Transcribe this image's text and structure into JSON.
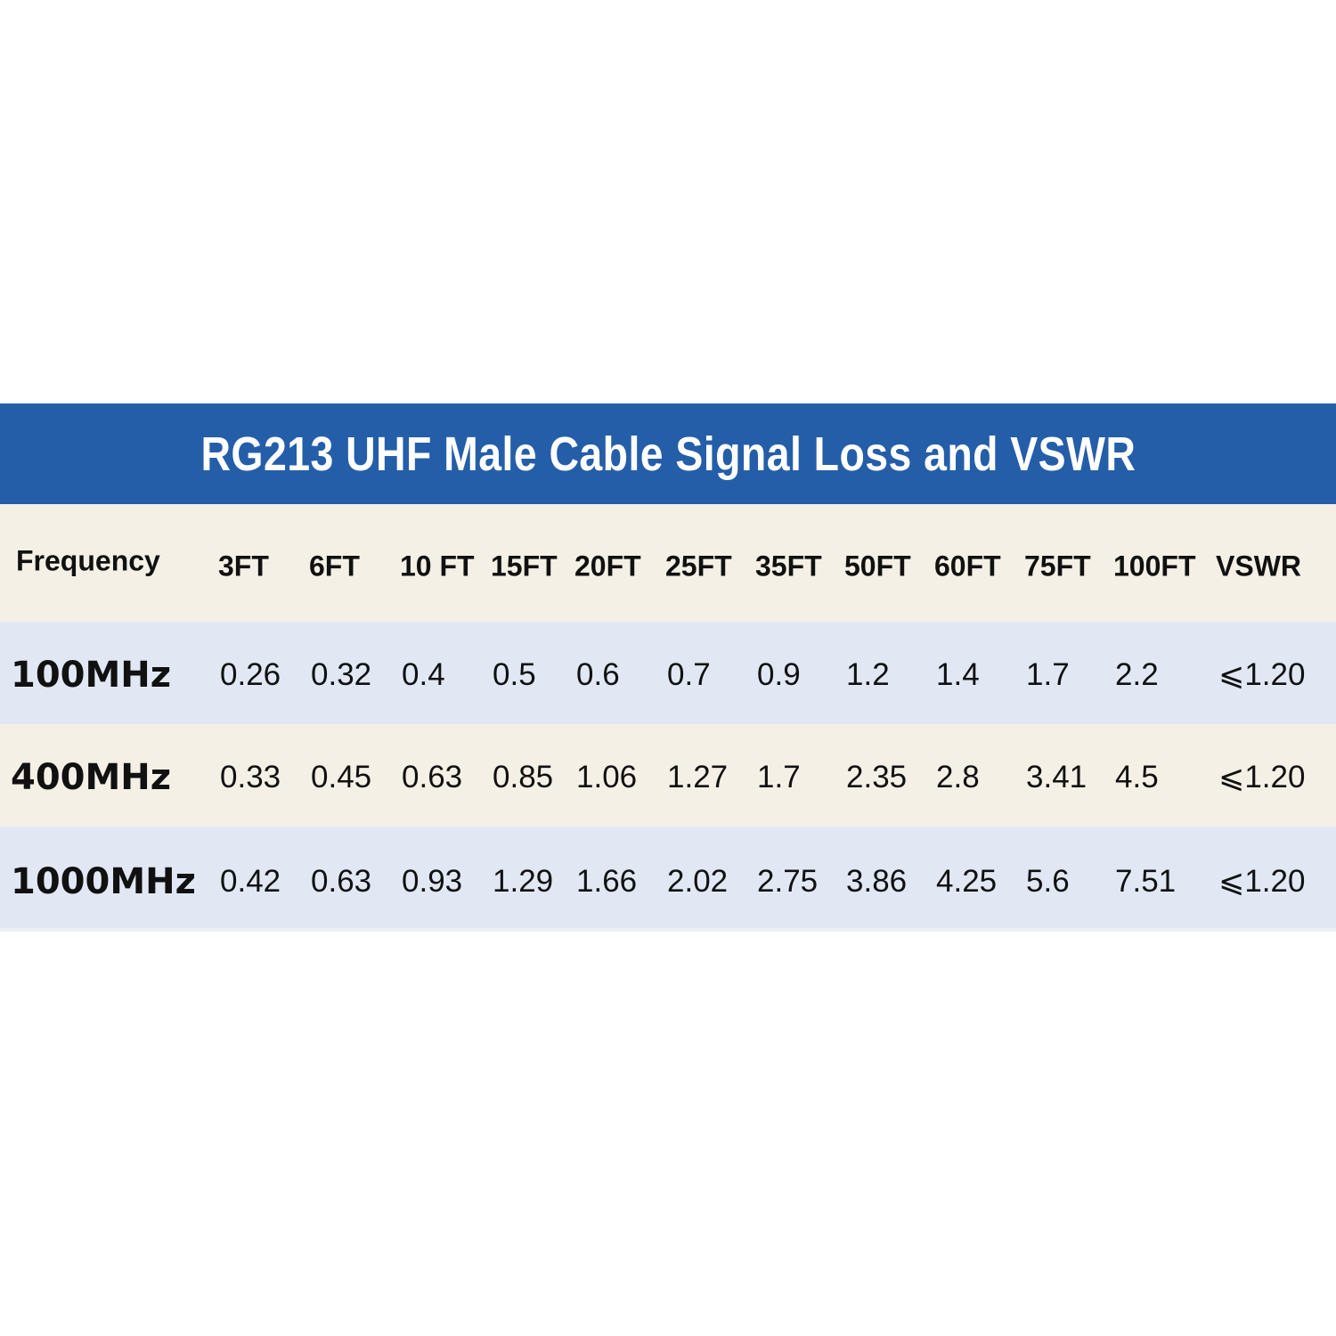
{
  "header": {
    "title": "RG213 UHF Male Cable Signal Loss and VSWR"
  },
  "table": {
    "columns": [
      "Frequency",
      "3FT",
      "6FT",
      "10 FT",
      "15FT",
      "20FT",
      "25FT",
      "35FT",
      "50FT",
      "60FT",
      "75FT",
      "100FT",
      "VSWR"
    ],
    "rows": [
      [
        "100MHz",
        "0.26",
        "0.32",
        "0.4",
        "0.5",
        "0.6",
        "0.7",
        "0.9",
        "1.2",
        "1.4",
        "1.7",
        "2.2",
        "⩽1.20"
      ],
      [
        "400MHz",
        "0.33",
        "0.45",
        "0.63",
        "0.85",
        "1.06",
        "1.27",
        "1.7",
        "2.35",
        "2.8",
        "3.41",
        "4.5",
        "⩽1.20"
      ],
      [
        "1000MHz",
        "0.42",
        "0.63",
        "0.93",
        "1.29",
        "1.66",
        "2.02",
        "2.75",
        "3.86",
        "4.25",
        "5.6",
        "7.51",
        "⩽1.20"
      ]
    ]
  }
}
